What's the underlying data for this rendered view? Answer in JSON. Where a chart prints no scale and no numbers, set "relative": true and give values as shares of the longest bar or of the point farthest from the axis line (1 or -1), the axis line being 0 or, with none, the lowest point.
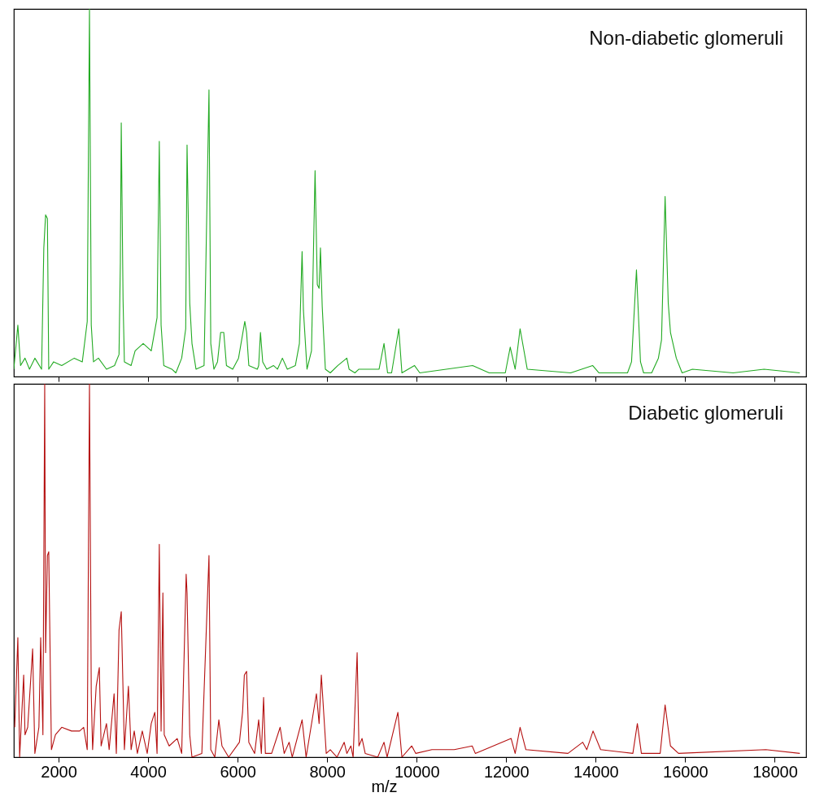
{
  "chart_data": [
    {
      "type": "line",
      "relative": true,
      "xlim": [
        1000,
        18700
      ],
      "tick_labels": false,
      "grid": false,
      "xticks": [
        {
          "value": 2000,
          "label": null
        },
        {
          "value": 4000,
          "label": null
        },
        {
          "value": 6000,
          "label": null
        },
        {
          "value": 8000,
          "label": null
        },
        {
          "value": 10000,
          "label": null
        },
        {
          "value": 12000,
          "label": null
        },
        {
          "value": 14000,
          "label": null
        },
        {
          "value": 16000,
          "label": null
        },
        {
          "value": 18000,
          "label": null
        }
      ],
      "annotations": [
        "Non-diabetic glomeruli"
      ],
      "series": [
        {
          "color": "#22aa22",
          "x": [
            1000,
            1090,
            1150,
            1250,
            1350,
            1470,
            1620,
            1670,
            1710,
            1750,
            1780,
            1890,
            2070,
            2350,
            2530,
            2640,
            2690,
            2730,
            2780,
            2890,
            3070,
            3250,
            3350,
            3380,
            3400,
            3440,
            3470,
            3620,
            3710,
            3890,
            4070,
            4200,
            4250,
            4290,
            4350,
            4530,
            4620,
            4750,
            4840,
            4870,
            4930,
            4980,
            5070,
            5250,
            5360,
            5400,
            5470,
            5550,
            5620,
            5690,
            5750,
            5890,
            6020,
            6090,
            6160,
            6200,
            6250,
            6440,
            6470,
            6510,
            6560,
            6650,
            6800,
            6890,
            7000,
            7110,
            7290,
            7380,
            7440,
            7470,
            7550,
            7650,
            7730,
            7780,
            7820,
            7850,
            7890,
            7960,
            8070,
            8240,
            8440,
            8490,
            8620,
            8710,
            8980,
            9160,
            9270,
            9350,
            9440,
            9600,
            9670,
            9950,
            10070,
            11250,
            11620,
            11980,
            12090,
            12200,
            12310,
            12470,
            13440,
            13930,
            14070,
            14710,
            14800,
            14910,
            15000,
            15070,
            15250,
            15400,
            15470,
            15550,
            15620,
            15670,
            15800,
            15930,
            16160,
            17070,
            17760,
            18560
          ],
          "values": [
            0.02,
            0.14,
            0.03,
            0.05,
            0.02,
            0.05,
            0.02,
            0.35,
            0.44,
            0.43,
            0.02,
            0.04,
            0.03,
            0.05,
            0.04,
            0.15,
            1,
            0.14,
            0.04,
            0.05,
            0.02,
            0.03,
            0.06,
            0.31,
            0.69,
            0.21,
            0.04,
            0.03,
            0.07,
            0.09,
            0.07,
            0.16,
            0.64,
            0.14,
            0.03,
            0.02,
            0.01,
            0.05,
            0.13,
            0.63,
            0.2,
            0.09,
            0.02,
            0.03,
            0.78,
            0.09,
            0.02,
            0.04,
            0.12,
            0.12,
            0.03,
            0.02,
            0.05,
            0.1,
            0.15,
            0.12,
            0.03,
            0.02,
            0.03,
            0.12,
            0.04,
            0.02,
            0.03,
            0.02,
            0.05,
            0.02,
            0.03,
            0.09,
            0.34,
            0.18,
            0.02,
            0.07,
            0.56,
            0.25,
            0.24,
            0.35,
            0.19,
            0.02,
            0.01,
            0.03,
            0.05,
            0.02,
            0.01,
            0.02,
            0.02,
            0.02,
            0.09,
            0.01,
            0.01,
            0.13,
            0.01,
            0.03,
            0.01,
            0.03,
            0.01,
            0.01,
            0.08,
            0.02,
            0.13,
            0.02,
            0.01,
            0.03,
            0.01,
            0.01,
            0.04,
            0.29,
            0.04,
            0.01,
            0.01,
            0.05,
            0.1,
            0.49,
            0.2,
            0.12,
            0.05,
            0.01,
            0.02,
            0.01,
            0.02,
            0.01
          ]
        }
      ]
    },
    {
      "type": "line",
      "relative": true,
      "xlim": [
        1000,
        18700
      ],
      "xlabel": "m/z",
      "grid": false,
      "xticks": [
        2000,
        4000,
        6000,
        8000,
        10000,
        12000,
        14000,
        16000,
        18000
      ],
      "annotations": [
        "Diabetic glomeruli"
      ],
      "series": [
        {
          "color": "#b51010",
          "x": [
            1020,
            1090,
            1130,
            1220,
            1250,
            1310,
            1420,
            1470,
            1560,
            1600,
            1650,
            1690,
            1710,
            1750,
            1780,
            1840,
            1930,
            2070,
            2290,
            2470,
            2560,
            2640,
            2690,
            2730,
            2760,
            2840,
            2910,
            2950,
            3070,
            3130,
            3240,
            3290,
            3350,
            3400,
            3470,
            3560,
            3620,
            3690,
            3760,
            3870,
            3980,
            4070,
            4150,
            4200,
            4250,
            4290,
            4330,
            4360,
            4470,
            4650,
            4750,
            4850,
            4870,
            4930,
            4980,
            5200,
            5360,
            5400,
            5490,
            5580,
            5650,
            5800,
            6040,
            6110,
            6150,
            6200,
            6250,
            6380,
            6470,
            6530,
            6580,
            6620,
            6760,
            6950,
            7040,
            7150,
            7220,
            7440,
            7530,
            7760,
            7820,
            7870,
            7980,
            8070,
            8220,
            8380,
            8440,
            8530,
            8580,
            8670,
            8710,
            8780,
            8850,
            9130,
            9270,
            9340,
            9580,
            9670,
            9890,
            9980,
            10340,
            10840,
            11240,
            11310,
            12110,
            12200,
            12310,
            12440,
            13380,
            13710,
            13800,
            13940,
            14110,
            14830,
            14930,
            15020,
            15440,
            15550,
            15670,
            15850,
            17800,
            18560
          ],
          "values": [
            0.08,
            0.32,
            0,
            0.22,
            0.06,
            0.08,
            0.29,
            0.01,
            0.08,
            0.32,
            0.06,
            1,
            0.28,
            0.54,
            0.55,
            0.02,
            0.06,
            0.08,
            0.07,
            0.07,
            0.08,
            0.02,
            1,
            0.17,
            0.02,
            0.19,
            0.24,
            0.03,
            0.09,
            0.02,
            0.17,
            0.01,
            0.34,
            0.39,
            0.02,
            0.19,
            0.02,
            0.07,
            0.01,
            0.07,
            0.01,
            0.09,
            0.12,
            0.01,
            0.57,
            0.07,
            0.44,
            0.06,
            0.03,
            0.05,
            0.01,
            0.49,
            0.44,
            0.06,
            0,
            0.01,
            0.54,
            0.02,
            0,
            0.1,
            0.03,
            0,
            0.04,
            0.12,
            0.22,
            0.23,
            0.04,
            0.01,
            0.1,
            0.01,
            0.16,
            0.01,
            0.01,
            0.08,
            0.01,
            0.04,
            0,
            0.1,
            0,
            0.17,
            0.09,
            0.22,
            0.01,
            0.02,
            0,
            0.04,
            0.01,
            0.03,
            0,
            0.28,
            0.03,
            0.05,
            0.01,
            0,
            0.04,
            0,
            0.12,
            0,
            0.03,
            0.01,
            0.02,
            0.02,
            0.03,
            0.01,
            0.05,
            0.01,
            0.08,
            0.02,
            0.01,
            0.04,
            0.02,
            0.07,
            0.02,
            0.01,
            0.09,
            0.01,
            0.01,
            0.14,
            0.03,
            0.01,
            0.02,
            0.01
          ]
        }
      ]
    }
  ]
}
